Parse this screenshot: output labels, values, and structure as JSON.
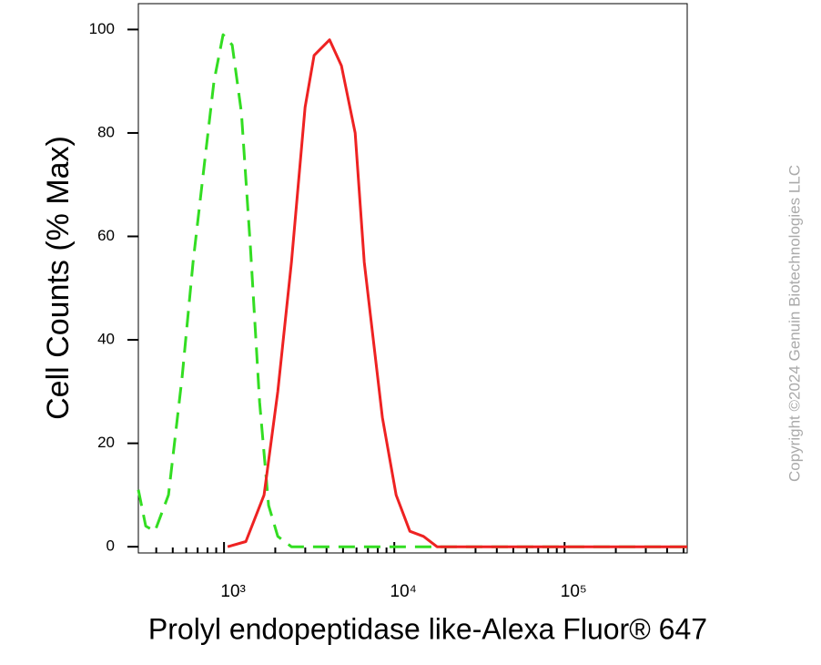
{
  "chart_data": {
    "type": "histogram-overlay",
    "ylabel": "Cell Counts (% Max)",
    "xlabel": "Prolyl endopeptidase like-Alexa Fluor® 647",
    "watermark": "Copyright ©2024 Genuin Biotechnologies LLC",
    "xscale": "log",
    "xlim": [
      314,
      525000
    ],
    "ylim": [
      -1.2,
      105
    ],
    "yticks": [
      0,
      20,
      40,
      60,
      80,
      100
    ],
    "xticks": [
      {
        "value": 1000,
        "label": "10³"
      },
      {
        "value": 10000,
        "label": "10⁴"
      },
      {
        "value": 100000,
        "label": "10⁵"
      }
    ],
    "xminorticks": [
      400,
      500,
      600,
      700,
      800,
      900,
      2000,
      3000,
      4000,
      5000,
      6000,
      7000,
      8000,
      9000,
      20000,
      30000,
      40000,
      50000,
      60000,
      70000,
      80000,
      90000,
      200000,
      300000,
      400000,
      500000
    ],
    "series": [
      {
        "color": "#33dd22",
        "dash": true,
        "x": [
          314,
          347,
          393,
          472,
          568,
          658,
          773,
          873,
          988,
          1117,
          1265,
          1429,
          1617,
          1828,
          2070,
          2488,
          10000,
          100000,
          525000
        ],
        "values": [
          11,
          4,
          3,
          10,
          33,
          55,
          75,
          90,
          99,
          97,
          84,
          58,
          28,
          8,
          2,
          0,
          0,
          0,
          0
        ]
      },
      {
        "color": "#ee2222",
        "dash": false,
        "x": [
          1050,
          1344,
          1718,
          2070,
          2488,
          2993,
          3383,
          4169,
          4894,
          5888,
          6663,
          8515,
          10250,
          12340,
          14840,
          17830,
          525000
        ],
        "values": [
          0,
          1,
          10,
          30,
          55,
          85,
          95,
          98,
          93,
          80,
          55,
          25,
          10,
          3,
          2,
          0,
          0
        ]
      }
    ]
  }
}
